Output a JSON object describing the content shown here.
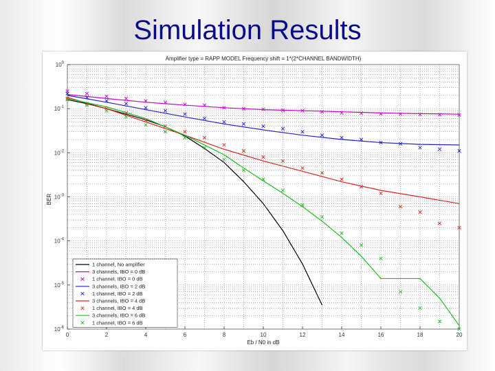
{
  "slide": {
    "title": "Simulation Results"
  },
  "chart_data": {
    "type": "line",
    "title": "Amplifier type = RAPP MODEL   Frequency shift = 1*(2*CHANNEL BANDWIDTH)",
    "xlabel": "Eb / N0 in dB",
    "ylabel": "BER",
    "xlim": [
      0,
      20
    ],
    "ylim": [
      1e-06,
      1
    ],
    "yscale": "log",
    "grid": true,
    "legend_position": "bottom-left",
    "x_ticks": [
      "0",
      "2",
      "4",
      "6",
      "8",
      "10",
      "12",
      "14",
      "16",
      "18",
      "20"
    ],
    "y_ticks": [
      {
        "base": "10",
        "exp": "0"
      },
      {
        "base": "10",
        "exp": "-1"
      },
      {
        "base": "10",
        "exp": "-2"
      },
      {
        "base": "10",
        "exp": "-3"
      },
      {
        "base": "10",
        "exp": "-4"
      },
      {
        "base": "10",
        "exp": "-5"
      },
      {
        "base": "10",
        "exp": "-6"
      }
    ],
    "series": [
      {
        "name": "1 channel, No amplifier",
        "color": "#000000",
        "style": "line",
        "x": [
          0,
          1,
          2,
          3,
          4,
          5,
          6,
          7,
          8,
          9,
          10,
          11,
          12,
          13
        ],
        "y": [
          0.16,
          0.13,
          0.1,
          0.075,
          0.056,
          0.039,
          0.024,
          0.0125,
          0.006,
          0.0022,
          0.0007,
          0.00017,
          3e-05,
          3.5e-06
        ]
      },
      {
        "name": "3 channels, IBO = 0 dB",
        "color": "#cc00cc",
        "style": "line",
        "x": [
          0,
          2,
          4,
          6,
          8,
          10,
          12,
          14,
          16,
          18,
          20
        ],
        "y": [
          0.21,
          0.17,
          0.14,
          0.12,
          0.105,
          0.095,
          0.09,
          0.085,
          0.08,
          0.077,
          0.075
        ]
      },
      {
        "name": "1 channel, IBO = 0 dB",
        "color": "#cc00cc",
        "style": "marker",
        "x": [
          0,
          1,
          2,
          3,
          4,
          5,
          6,
          7,
          8,
          9,
          10,
          11,
          12,
          13,
          14,
          15,
          16,
          17,
          18,
          19,
          20
        ],
        "y": [
          0.25,
          0.22,
          0.19,
          0.17,
          0.15,
          0.14,
          0.125,
          0.12,
          0.105,
          0.1,
          0.097,
          0.092,
          0.09,
          0.085,
          0.08,
          0.079,
          0.076,
          0.075,
          0.074,
          0.073,
          0.072
        ]
      },
      {
        "name": "3 channels, IBO = 2 dB",
        "color": "#2020cc",
        "style": "line",
        "x": [
          0,
          2,
          4,
          6,
          8,
          10,
          12,
          14,
          16,
          18,
          20
        ],
        "y": [
          0.2,
          0.14,
          0.095,
          0.065,
          0.045,
          0.033,
          0.025,
          0.02,
          0.017,
          0.0155,
          0.015
        ]
      },
      {
        "name": "1 channel, IBO = 2 dB",
        "color": "#2020cc",
        "style": "marker",
        "x": [
          0,
          1,
          2,
          3,
          4,
          5,
          6,
          7,
          8,
          9,
          10,
          11,
          12,
          13,
          14,
          15,
          16,
          17,
          18,
          19,
          20
        ],
        "y": [
          0.22,
          0.18,
          0.15,
          0.13,
          0.105,
          0.09,
          0.075,
          0.06,
          0.05,
          0.045,
          0.04,
          0.035,
          0.03,
          0.025,
          0.022,
          0.02,
          0.017,
          0.016,
          0.013,
          0.012,
          0.011
        ]
      },
      {
        "name": "3 channels, IBO = 4 dB",
        "color": "#dd2222",
        "style": "line",
        "x": [
          0,
          2,
          4,
          6,
          8,
          10,
          12,
          14,
          16,
          18,
          20
        ],
        "y": [
          0.18,
          0.1,
          0.05,
          0.025,
          0.012,
          0.0065,
          0.0038,
          0.0022,
          0.0014,
          0.001,
          0.0007
        ]
      },
      {
        "name": "1 channel, IBO = 4 dB",
        "color": "#dd2222",
        "style": "marker",
        "x": [
          0,
          1,
          2,
          3,
          4,
          5,
          6,
          7,
          8,
          9,
          10,
          11,
          12,
          13,
          14,
          15,
          16,
          17,
          18,
          19,
          20
        ],
        "y": [
          0.17,
          0.13,
          0.1,
          0.08,
          0.055,
          0.04,
          0.03,
          0.022,
          0.015,
          0.011,
          0.008,
          0.0065,
          0.0045,
          0.0035,
          0.0025,
          0.0017,
          0.0012,
          0.0006,
          0.00045,
          0.00025,
          0.0002
        ]
      },
      {
        "name": "3 channels, IBO = 6 dB",
        "color": "#22bb22",
        "style": "line",
        "x": [
          0,
          2,
          4,
          6,
          7,
          8,
          9,
          10,
          11,
          12,
          13,
          14,
          15,
          16,
          17,
          18,
          19,
          20
        ],
        "y": [
          0.17,
          0.11,
          0.06,
          0.025,
          0.015,
          0.009,
          0.0045,
          0.0023,
          0.0012,
          0.0006,
          0.00028,
          0.00012,
          4.5e-05,
          1.4e-05,
          1.4e-05,
          1.4e-05,
          5e-06,
          1.2e-06
        ]
      },
      {
        "name": "1 channel, IBO = 6 dB",
        "color": "#22bb22",
        "style": "marker",
        "x": [
          0,
          1,
          2,
          3,
          4,
          5,
          6,
          7,
          8,
          9,
          10,
          11,
          12,
          13,
          14,
          15,
          16,
          17,
          18,
          19,
          20
        ],
        "y": [
          0.16,
          0.12,
          0.09,
          0.065,
          0.043,
          0.03,
          0.022,
          0.013,
          0.007,
          0.004,
          0.0025,
          0.0014,
          0.00065,
          0.00035,
          0.00015,
          8e-05,
          4e-05,
          7e-06,
          3e-06,
          1.5e-06,
          1e-06
        ]
      }
    ]
  }
}
